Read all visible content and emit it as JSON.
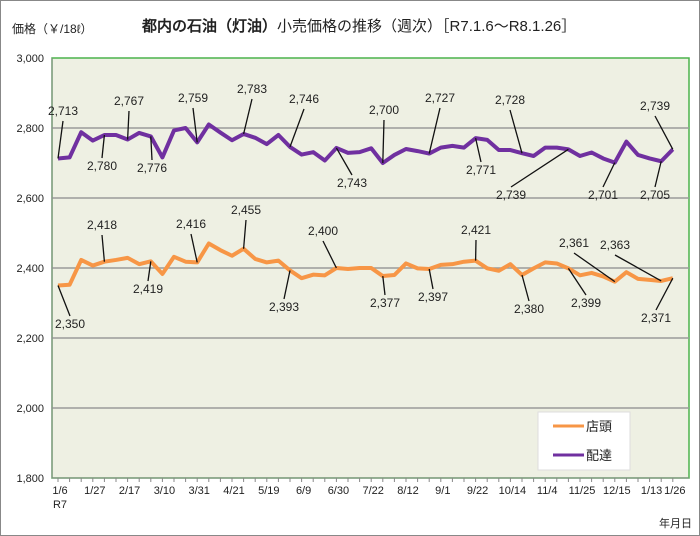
{
  "chart_data": {
    "type": "line",
    "title_bold": "都内の石油（灯油）",
    "title_rest": "小売価格の推移（週次）［R7.1.6～R8.1.26］",
    "ylabel": "価格（￥/18ℓ）",
    "xlabel": "年月日",
    "ylim": [
      1800,
      3000
    ],
    "yticks": [
      1800,
      2000,
      2200,
      2400,
      2600,
      2800,
      3000
    ],
    "ytick_labels": [
      "1,800",
      "2,000",
      "2,200",
      "2,400",
      "2,600",
      "2,800",
      "3,000"
    ],
    "grid": true,
    "legend_position": "bottom-right",
    "x_era_label": "R7",
    "xticks": [
      {
        "index": 0,
        "label": "1/6"
      },
      {
        "index": 3,
        "label": "1/27"
      },
      {
        "index": 6,
        "label": "2/17"
      },
      {
        "index": 9,
        "label": "3/10"
      },
      {
        "index": 12,
        "label": "3/31"
      },
      {
        "index": 15,
        "label": "4/21"
      },
      {
        "index": 18,
        "label": "5/19"
      },
      {
        "index": 21,
        "label": "6/9"
      },
      {
        "index": 24,
        "label": "6/30"
      },
      {
        "index": 27,
        "label": "7/22"
      },
      {
        "index": 30,
        "label": "8/12"
      },
      {
        "index": 33,
        "label": "9/1"
      },
      {
        "index": 36,
        "label": "9/22"
      },
      {
        "index": 39,
        "label": "10/14"
      },
      {
        "index": 42,
        "label": "11/4"
      },
      {
        "index": 45,
        "label": "11/25"
      },
      {
        "index": 48,
        "label": "12/15"
      },
      {
        "index": 51,
        "label": "1/13"
      },
      {
        "index": 53,
        "label": "1/26"
      }
    ],
    "series": [
      {
        "name": "店頭",
        "color": "#F79646",
        "values": [
          2350,
          2352,
          2423,
          2407,
          2418,
          2423,
          2429,
          2411,
          2419,
          2383,
          2432,
          2418,
          2416,
          2470,
          2451,
          2435,
          2455,
          2426,
          2416,
          2421,
          2393,
          2371,
          2381,
          2379,
          2400,
          2397,
          2400,
          2400,
          2377,
          2380,
          2413,
          2399,
          2397,
          2409,
          2411,
          2418,
          2421,
          2399,
          2392,
          2411,
          2380,
          2399,
          2416,
          2413,
          2399,
          2379,
          2386,
          2376,
          2361,
          2388,
          2369,
          2366,
          2363,
          2371
        ]
      },
      {
        "name": "配達",
        "color": "#7030A0",
        "values": [
          2713,
          2716,
          2788,
          2764,
          2780,
          2780,
          2767,
          2786,
          2776,
          2716,
          2793,
          2800,
          2759,
          2810,
          2787,
          2765,
          2783,
          2772,
          2754,
          2780,
          2746,
          2724,
          2731,
          2707,
          2743,
          2729,
          2731,
          2742,
          2700,
          2723,
          2740,
          2734,
          2727,
          2744,
          2749,
          2744,
          2771,
          2766,
          2737,
          2737,
          2728,
          2720,
          2744,
          2744,
          2739,
          2720,
          2730,
          2713,
          2701,
          2761,
          2723,
          2713,
          2705,
          2739
        ]
      }
    ],
    "annotations": [
      {
        "series": 1,
        "index": 0,
        "label": "2,713"
      },
      {
        "series": 1,
        "index": 4,
        "label": "2,780"
      },
      {
        "series": 1,
        "index": 6,
        "label": "2,767"
      },
      {
        "series": 1,
        "index": 8,
        "label": "2,776"
      },
      {
        "series": 1,
        "index": 12,
        "label": "2,759"
      },
      {
        "series": 1,
        "index": 16,
        "label": "2,783"
      },
      {
        "series": 1,
        "index": 20,
        "label": "2,746"
      },
      {
        "series": 1,
        "index": 24,
        "label": "2,743"
      },
      {
        "series": 1,
        "index": 28,
        "label": "2,700"
      },
      {
        "series": 1,
        "index": 32,
        "label": "2,727"
      },
      {
        "series": 1,
        "index": 36,
        "label": "2,771"
      },
      {
        "series": 1,
        "index": 40,
        "label": "2,728"
      },
      {
        "series": 1,
        "index": 44,
        "label": "2,739"
      },
      {
        "series": 1,
        "index": 48,
        "label": "2,701"
      },
      {
        "series": 1,
        "index": 52,
        "label": "2,705"
      },
      {
        "series": 1,
        "index": 53,
        "label": "2,739"
      },
      {
        "series": 0,
        "index": 0,
        "label": "2,350"
      },
      {
        "series": 0,
        "index": 4,
        "label": "2,418"
      },
      {
        "series": 0,
        "index": 8,
        "label": "2,419"
      },
      {
        "series": 0,
        "index": 12,
        "label": "2,416"
      },
      {
        "series": 0,
        "index": 16,
        "label": "2,455"
      },
      {
        "series": 0,
        "index": 20,
        "label": "2,393"
      },
      {
        "series": 0,
        "index": 24,
        "label": "2,400"
      },
      {
        "series": 0,
        "index": 28,
        "label": "2,377"
      },
      {
        "series": 0,
        "index": 32,
        "label": "2,397"
      },
      {
        "series": 0,
        "index": 36,
        "label": "2,421"
      },
      {
        "series": 0,
        "index": 40,
        "label": "2,380"
      },
      {
        "series": 0,
        "index": 44,
        "label": "2,399"
      },
      {
        "series": 0,
        "index": 48,
        "label": "2,361"
      },
      {
        "series": 0,
        "index": 52,
        "label": "2,363"
      },
      {
        "series": 0,
        "index": 53,
        "label": "2,371"
      }
    ]
  }
}
